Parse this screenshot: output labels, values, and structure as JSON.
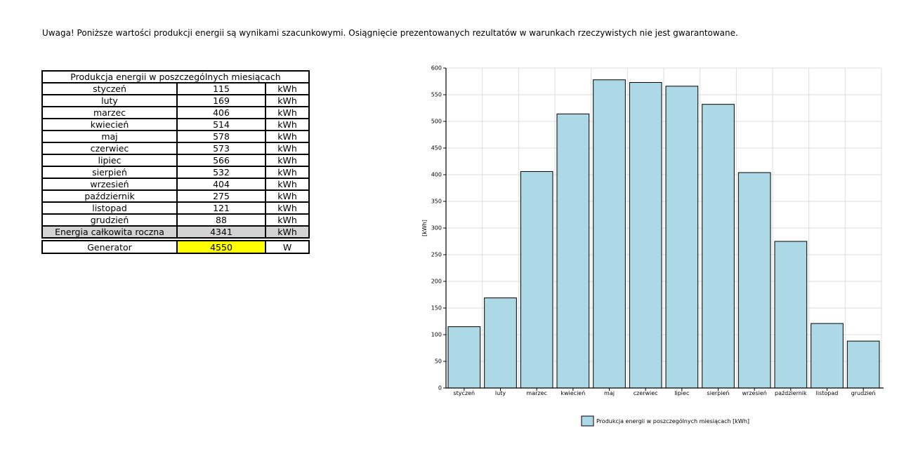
{
  "notice": "Uwaga! Poniższe wartości produkcji energii są wynikami szacunkowymi. Osiągnięcie prezentowanych rezultatów w warunkach rzeczywistych nie jest gwarantowane.",
  "table": {
    "header": "Produkcja energii w poszczególnych miesiącach",
    "rows": [
      {
        "month": "styczeń",
        "value": "115",
        "unit": "kWh"
      },
      {
        "month": "luty",
        "value": "169",
        "unit": "kWh"
      },
      {
        "month": "marzec",
        "value": "406",
        "unit": "kWh"
      },
      {
        "month": "kwiecień",
        "value": "514",
        "unit": "kWh"
      },
      {
        "month": "maj",
        "value": "578",
        "unit": "kWh"
      },
      {
        "month": "czerwiec",
        "value": "573",
        "unit": "kWh"
      },
      {
        "month": "lipiec",
        "value": "566",
        "unit": "kWh"
      },
      {
        "month": "sierpień",
        "value": "532",
        "unit": "kWh"
      },
      {
        "month": "wrzesień",
        "value": "404",
        "unit": "kWh"
      },
      {
        "month": "październik",
        "value": "275",
        "unit": "kWh"
      },
      {
        "month": "listopad",
        "value": "121",
        "unit": "kWh"
      },
      {
        "month": "grudzień",
        "value": "88",
        "unit": "kWh"
      }
    ],
    "total": {
      "label": "Energia całkowita roczna",
      "value": "4341",
      "unit": "kWh"
    },
    "generator": {
      "label": "Generator",
      "value": "4550",
      "unit": "W"
    }
  },
  "colors": {
    "bar_fill": "#add8e6",
    "bar_stroke": "#000000",
    "grid": "#dddddd",
    "total_row_bg": "#d3d3d3",
    "generator_highlight": "#ffff00"
  },
  "chart_data": {
    "type": "bar",
    "categories": [
      "styczeń",
      "luty",
      "marzec",
      "kwiecień",
      "maj",
      "czerwiec",
      "lipiec",
      "sierpień",
      "wrzesień",
      "październik",
      "listopad",
      "grudzień"
    ],
    "series": [
      {
        "name": "Produkcja energii w poszczególnych miesiącach [kWh]",
        "values": [
          115,
          169,
          406,
          514,
          578,
          573,
          566,
          532,
          404,
          275,
          121,
          88
        ]
      }
    ],
    "ylabel": "[kWh]",
    "ylim": [
      0,
      600
    ],
    "yticks": [
      0,
      50,
      100,
      150,
      200,
      250,
      300,
      350,
      400,
      450,
      500,
      550,
      600
    ],
    "grid": true,
    "legend_position": "bottom-center"
  }
}
